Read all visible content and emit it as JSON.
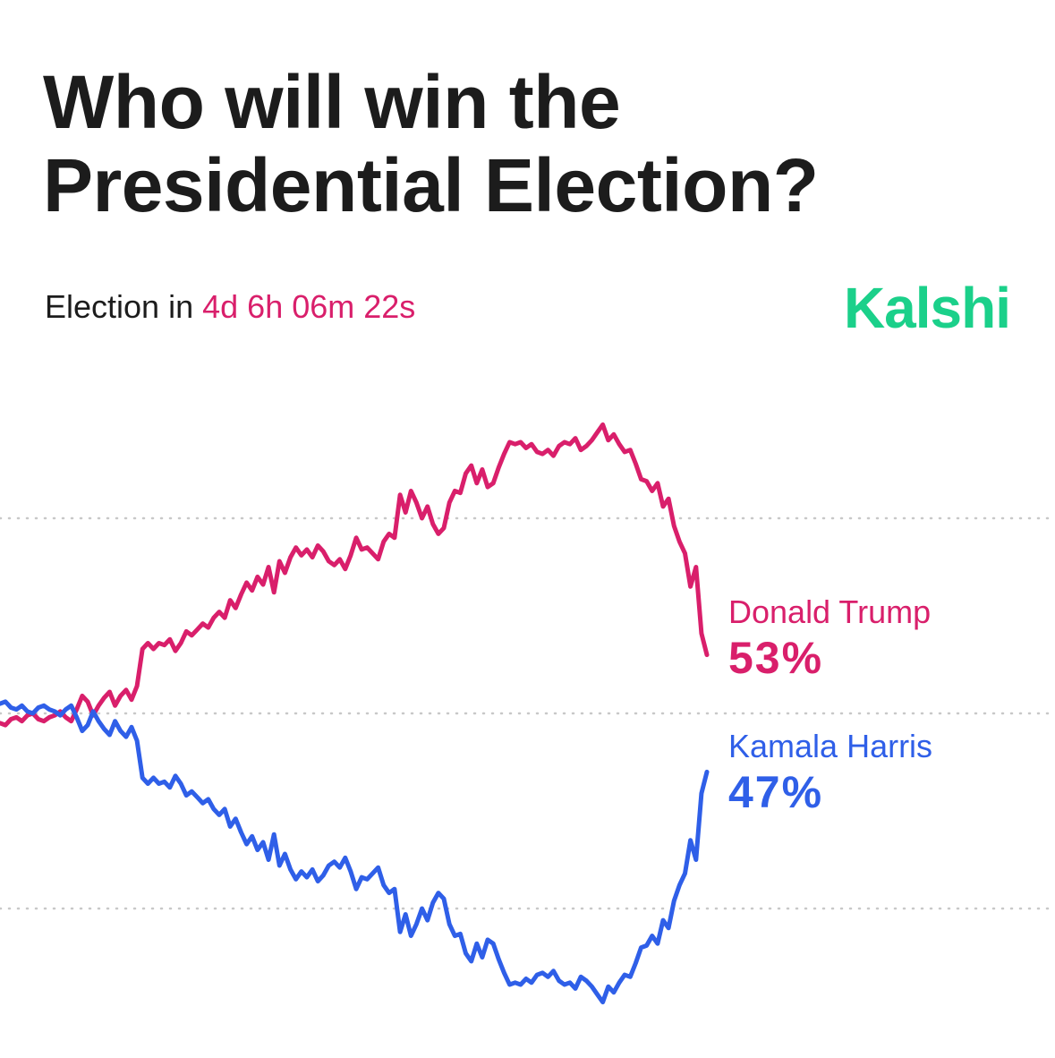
{
  "header": {
    "title": "Who will win the Presidential Election?",
    "countdown_prefix": "Election in",
    "countdown_value": "4d 6h 06m 22s",
    "brand": "Kalshi"
  },
  "colors": {
    "trump": "#d91f6b",
    "harris": "#2f5fe8",
    "brand": "#1bd08a",
    "text": "#1c1c1c",
    "grid": "#c8c8c8"
  },
  "chart_data": {
    "type": "line",
    "title": "Who will win the Presidential Election?",
    "xlabel": "",
    "ylabel": "",
    "ylim": [
      35,
      65
    ],
    "grid": "horizontal dotted lines at 40, 50, 60",
    "legend": "end-of-line labels",
    "series": [
      {
        "name": "Donald Trump",
        "label": "Donald Trump",
        "final_label": "53%",
        "color": "#d91f6b",
        "values": [
          49.5,
          49.4,
          49.7,
          49.8,
          49.6,
          49.9,
          50.0,
          49.7,
          49.6,
          49.8,
          49.9,
          50.1,
          49.8,
          49.6,
          50.2,
          50.9,
          50.6,
          49.9,
          50.4,
          50.8,
          51.1,
          50.4,
          50.9,
          51.2,
          50.7,
          51.4,
          53.3,
          53.6,
          53.3,
          53.6,
          53.5,
          53.8,
          53.2,
          53.6,
          54.2,
          54.0,
          54.3,
          54.6,
          54.4,
          54.9,
          55.2,
          54.9,
          55.8,
          55.4,
          56.1,
          56.7,
          56.3,
          57.0,
          56.6,
          57.5,
          56.2,
          57.8,
          57.2,
          58.0,
          58.5,
          58.1,
          58.4,
          58.0,
          58.6,
          58.3,
          57.8,
          57.6,
          57.9,
          57.4,
          58.1,
          59.0,
          58.4,
          58.5,
          58.2,
          57.9,
          58.8,
          59.2,
          59.0,
          61.2,
          60.3,
          61.4,
          60.8,
          60.0,
          60.6,
          59.7,
          59.2,
          59.5,
          60.8,
          61.4,
          61.3,
          62.3,
          62.7,
          61.8,
          62.5,
          61.6,
          61.8,
          62.6,
          63.3,
          63.9,
          63.8,
          63.9,
          63.6,
          63.8,
          63.4,
          63.3,
          63.5,
          63.2,
          63.7,
          63.9,
          63.8,
          64.1,
          63.5,
          63.7,
          64.0,
          64.4,
          64.8,
          64.0,
          64.3,
          63.8,
          63.4,
          63.5,
          62.8,
          62.0,
          61.9,
          61.4,
          61.8,
          60.6,
          61.0,
          59.6,
          58.8,
          58.2,
          56.5,
          57.5,
          54.1,
          53.0
        ],
        "final": 53
      },
      {
        "name": "Kamala Harris",
        "label": "Kamala Harris",
        "final_label": "47%",
        "color": "#2f5fe8",
        "values": [
          50.5,
          50.6,
          50.3,
          50.2,
          50.4,
          50.1,
          50.0,
          50.3,
          50.4,
          50.2,
          50.1,
          49.9,
          50.2,
          50.4,
          49.8,
          49.1,
          49.4,
          50.1,
          49.6,
          49.2,
          48.9,
          49.6,
          49.1,
          48.8,
          49.3,
          48.6,
          46.7,
          46.4,
          46.7,
          46.4,
          46.5,
          46.2,
          46.8,
          46.4,
          45.8,
          46.0,
          45.7,
          45.4,
          45.6,
          45.1,
          44.8,
          45.1,
          44.2,
          44.6,
          43.9,
          43.3,
          43.7,
          43.0,
          43.4,
          42.5,
          43.8,
          42.2,
          42.8,
          42.0,
          41.5,
          41.9,
          41.6,
          42.0,
          41.4,
          41.7,
          42.2,
          42.4,
          42.1,
          42.6,
          41.9,
          41.0,
          41.6,
          41.5,
          41.8,
          42.1,
          41.2,
          40.8,
          41.0,
          38.8,
          39.7,
          38.6,
          39.2,
          40.0,
          39.4,
          40.3,
          40.8,
          40.5,
          39.2,
          38.6,
          38.7,
          37.7,
          37.3,
          38.2,
          37.5,
          38.4,
          38.2,
          37.4,
          36.7,
          36.1,
          36.2,
          36.1,
          36.4,
          36.2,
          36.6,
          36.7,
          36.5,
          36.8,
          36.3,
          36.1,
          36.2,
          35.9,
          36.5,
          36.3,
          36.0,
          35.6,
          35.2,
          36.0,
          35.7,
          36.2,
          36.6,
          36.5,
          37.2,
          38.0,
          38.1,
          38.6,
          38.2,
          39.4,
          39.0,
          40.4,
          41.2,
          41.8,
          43.5,
          42.5,
          45.9,
          47.0
        ],
        "final": 47
      }
    ]
  }
}
